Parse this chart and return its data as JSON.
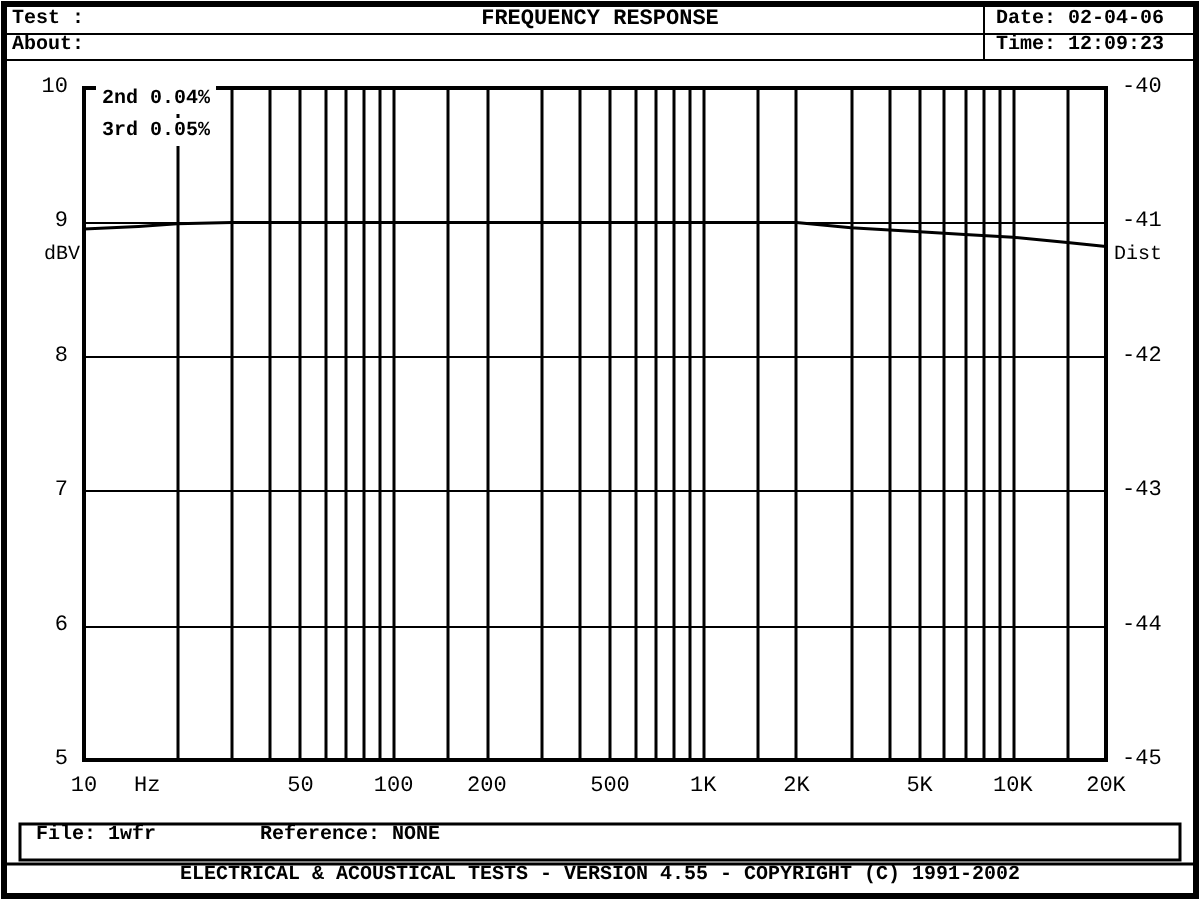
{
  "chart_data": {
    "type": "line",
    "title": "FREQUENCY RESPONSE",
    "xlabel": "Hz",
    "ylabel": "dBV",
    "y2label": "Dist",
    "annotations": [
      "Test :",
      "About:",
      "Date: 02-04-06",
      "Time: 12:09:23",
      "2nd 0.04%",
      "3rd 0.05%",
      "File: 1wfr",
      "Reference: NONE",
      "ELECTRICAL & ACOUSTICAL TESTS - VERSION 4.55 - COPYRIGHT (C) 1991-2002"
    ],
    "log": "x",
    "grid": true,
    "marker": "none",
    "line_style": "solid",
    "xlim": [
      10,
      20000
    ],
    "ylim": [
      5,
      10
    ],
    "yticks": [
      5,
      6,
      7,
      8,
      9,
      10
    ],
    "y2lim": [
      -45,
      -40
    ],
    "y2ticks": [
      -45,
      -44,
      -43,
      -42,
      -41,
      -40
    ],
    "xticks": [
      10,
      {
        "value": 20,
        "label": null
      },
      {
        "value": 30,
        "label": null
      },
      {
        "value": 40,
        "label": null
      },
      50,
      {
        "value": 60,
        "label": null
      },
      {
        "value": 70,
        "label": null
      },
      {
        "value": 80,
        "label": null
      },
      {
        "value": 90,
        "label": null
      },
      100,
      {
        "value": 150,
        "label": null
      },
      200,
      {
        "value": 300,
        "label": null
      },
      {
        "value": 400,
        "label": null
      },
      500,
      {
        "value": 600,
        "label": null
      },
      {
        "value": 700,
        "label": null
      },
      {
        "value": 800,
        "label": null
      },
      {
        "value": 900,
        "label": null
      },
      {
        "value": 1000,
        "label": "1K"
      },
      {
        "value": 1500,
        "label": null
      },
      {
        "value": 2000,
        "label": "2K"
      },
      {
        "value": 3000,
        "label": null
      },
      {
        "value": 4000,
        "label": null
      },
      {
        "value": 5000,
        "label": "5K"
      },
      {
        "value": 6000,
        "label": null
      },
      {
        "value": 7000,
        "label": null
      },
      {
        "value": 8000,
        "label": null
      },
      {
        "value": 9000,
        "label": null
      },
      {
        "value": 10000,
        "label": "10K"
      },
      {
        "value": 15000,
        "label": null
      },
      {
        "value": 20000,
        "label": "20K"
      }
    ],
    "x": [
      10,
      15,
      20,
      30,
      50,
      100,
      200,
      500,
      1000,
      2000,
      3000,
      5000,
      7000,
      10000,
      15000,
      20000
    ],
    "series": [
      {
        "color": "#000000",
        "values": [
          8.95,
          8.97,
          8.99,
          9.0,
          9.0,
          9.0,
          9.0,
          9.0,
          9.0,
          9.0,
          8.96,
          8.93,
          8.91,
          8.89,
          8.85,
          8.82
        ]
      }
    ]
  }
}
